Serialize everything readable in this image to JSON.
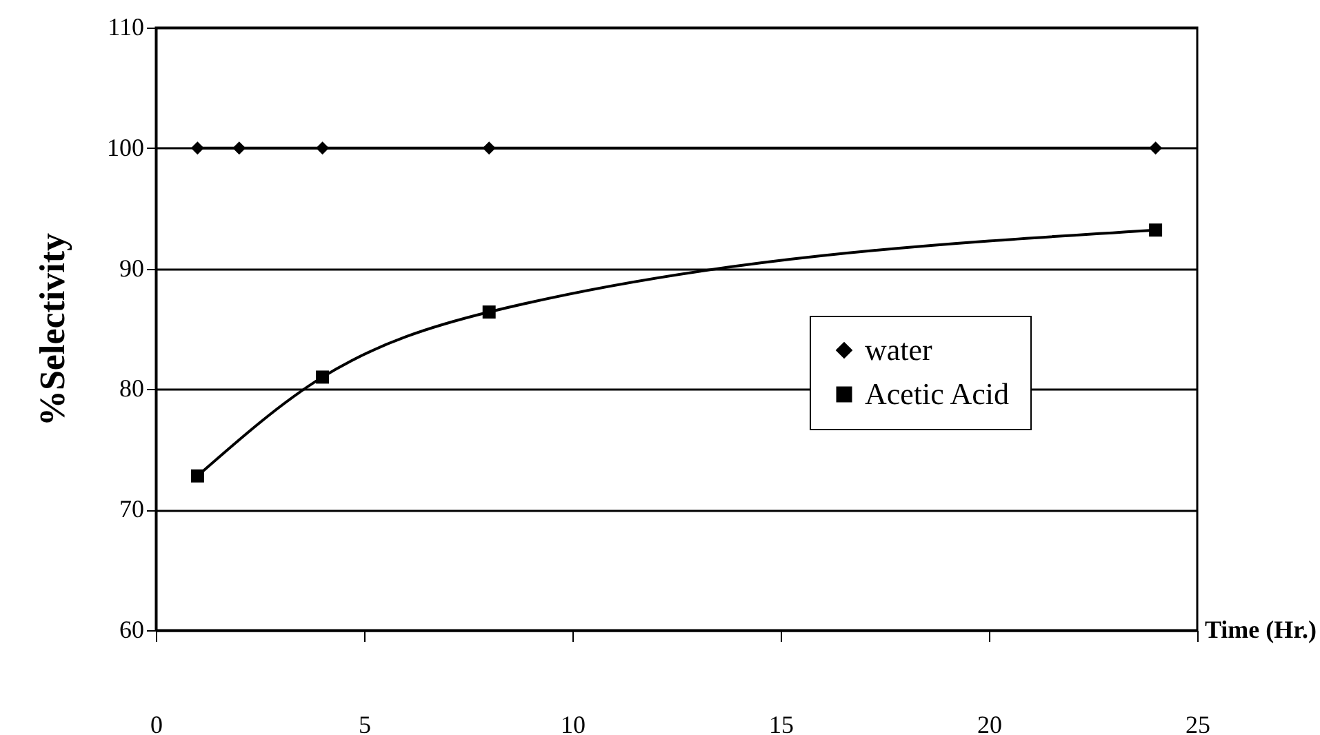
{
  "chart_data": {
    "type": "line",
    "xlabel": "Time (Hr.)",
    "ylabel": "%Selectivity",
    "xlim": [
      0,
      25
    ],
    "xticks": [
      0,
      5,
      10,
      15,
      20,
      25
    ],
    "ylim": [
      60,
      110
    ],
    "yticks": [
      60,
      70,
      80,
      90,
      100,
      110
    ],
    "grid": "y",
    "legend": "right",
    "line_style": "solid",
    "series": [
      {
        "name": "water",
        "color": "#000000",
        "marker": "diamond",
        "x": [
          1,
          2,
          4,
          8,
          24
        ],
        "values": [
          100,
          100,
          100,
          100,
          100
        ]
      },
      {
        "name": "Acetic Acid",
        "color": "#000000",
        "marker": "square",
        "x": [
          1,
          4,
          8,
          24
        ],
        "values": [
          72.8,
          81,
          86.4,
          93.2
        ]
      }
    ]
  }
}
